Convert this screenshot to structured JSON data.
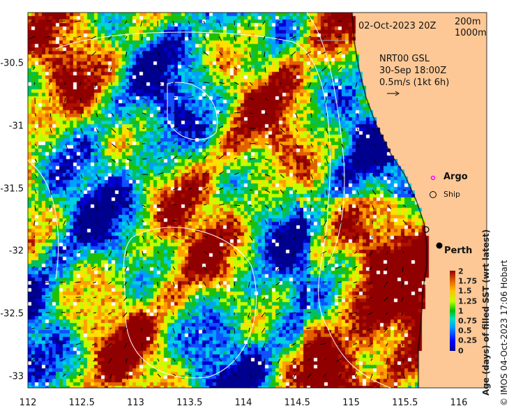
{
  "map": {
    "date_label": "02-Oct-2023 20Z",
    "contour_legend": [
      "200m",
      "1000m"
    ],
    "current_source": "NRT00 GSL",
    "current_time": "30-Sep 18:00Z",
    "current_scale": "0.5m/s (1kt 6h)",
    "legend_argo": "Argo",
    "legend_ship": "Ship",
    "city": "Perth",
    "x_ticks": [
      "112",
      "112.5",
      "113",
      "113.5",
      "114",
      "114.5",
      "115",
      "115.5",
      "116"
    ],
    "y_ticks": [
      "-30.5",
      "-31",
      "-31.5",
      "-32",
      "-32.5",
      "-33"
    ],
    "lon_range": [
      112,
      116.3
    ],
    "lat_range": [
      -30.09,
      -33.08
    ],
    "land_color": "#fdc896",
    "argo_color": "#ff00ff"
  },
  "colorbar": {
    "title": "Age (days) of filled SST (wrt latest)",
    "ticks": [
      "2",
      "1.75",
      "1.5",
      "1.25",
      "1",
      "0.75",
      "0.5",
      "0.25",
      "0"
    ],
    "range": [
      0,
      2
    ]
  },
  "credit": "© IMOS 04-Oct-2023 17:06 Hobart"
}
